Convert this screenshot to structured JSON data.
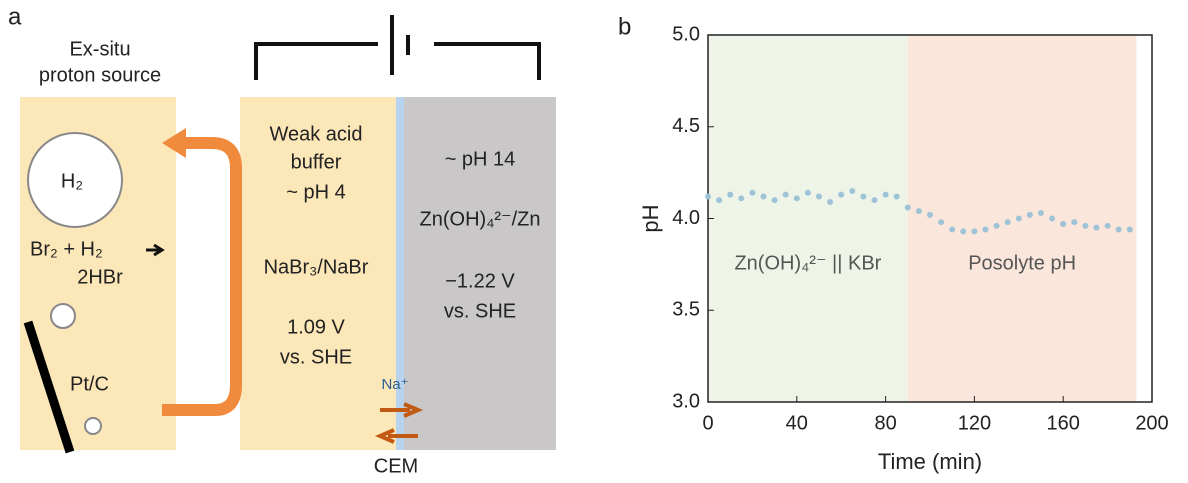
{
  "panel_a": {
    "label": "a",
    "source_line1": "Ex-situ",
    "source_line2": "proton source",
    "h2": "H₂",
    "reaction_1": "Br₂ + H₂",
    "reaction_2": "2HBr",
    "catalyst": "Pt/C",
    "posolyte": [
      "Weak acid",
      "buffer",
      "~ pH 4",
      "NaBr₃/NaBr",
      "1.09 V",
      "vs. SHE"
    ],
    "negolyte": [
      "~ pH 14",
      "Zn(OH)₄²⁻/Zn",
      "−1.22 V",
      "vs. SHE"
    ],
    "ion": "Na⁺",
    "membrane": "CEM"
  },
  "chart_data": {
    "type": "scatter",
    "panel_label": "b",
    "x_label": "Time (min)",
    "y_label": "pH",
    "color": "#9fc3d6",
    "x": [
      0,
      5,
      10,
      15,
      20,
      25,
      30,
      35,
      40,
      45,
      50,
      55,
      60,
      65,
      70,
      75,
      80,
      85,
      90,
      95,
      100,
      105,
      110,
      115,
      120,
      125,
      130,
      135,
      140,
      145,
      150,
      155,
      160,
      165,
      170,
      175,
      180,
      185,
      190
    ],
    "values": [
      4.12,
      4.1,
      4.13,
      4.11,
      4.14,
      4.12,
      4.1,
      4.13,
      4.11,
      4.14,
      4.12,
      4.09,
      4.13,
      4.15,
      4.12,
      4.1,
      4.13,
      4.12,
      4.06,
      4.04,
      4.02,
      3.98,
      3.94,
      3.93,
      3.93,
      3.94,
      3.96,
      3.98,
      4.0,
      4.02,
      4.03,
      4.0,
      3.97,
      3.98,
      3.96,
      3.95,
      3.96,
      3.94,
      3.94
    ],
    "xlim": [
      0,
      200
    ],
    "ylim": [
      3,
      5
    ],
    "xticks": [
      0,
      40,
      80,
      120,
      160,
      200
    ],
    "yticks": [
      {
        "value": 3,
        "label": "3.0"
      },
      3.5,
      {
        "value": 4,
        "label": "4.0"
      },
      4.5,
      {
        "value": 5,
        "label": "5.0"
      }
    ],
    "regions": [
      {
        "start": 0,
        "end": 90,
        "color": "#eef5e8",
        "label": "Zn(OH)₄²⁻ || KBr"
      },
      {
        "start": 90,
        "end": 193,
        "color": "#fbe6dc",
        "label": "Posolyte pH"
      }
    ]
  }
}
